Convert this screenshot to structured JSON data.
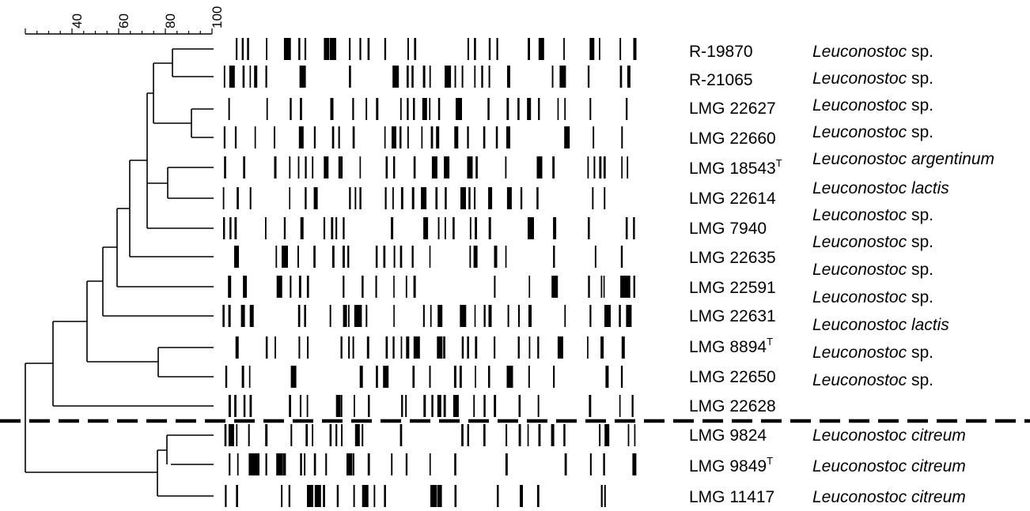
{
  "scale_bar": {
    "tick_labels": [
      "40",
      "60",
      "80",
      "100"
    ]
  },
  "samples": [
    {
      "strain": "R-19870",
      "type_strain": false,
      "genus": "Leuconostoc",
      "epithet": "sp."
    },
    {
      "strain": "R-21065",
      "type_strain": false,
      "genus": "Leuconostoc",
      "epithet": "sp."
    },
    {
      "strain": "LMG 22627",
      "type_strain": false,
      "genus": "Leuconostoc",
      "epithet": "sp."
    },
    {
      "strain": "LMG 22660",
      "type_strain": false,
      "genus": "Leuconostoc",
      "epithet": "sp."
    },
    {
      "strain": "LMG 18543",
      "type_strain": true,
      "genus": "Leuconostoc",
      "epithet": "argentinum"
    },
    {
      "strain": "LMG 22614",
      "type_strain": false,
      "genus": "Leuconostoc",
      "epithet": "lactis"
    },
    {
      "strain": "LMG 7940",
      "type_strain": false,
      "genus": "Leuconostoc",
      "epithet": "sp."
    },
    {
      "strain": "LMG 22635",
      "type_strain": false,
      "genus": "Leuconostoc",
      "epithet": "sp."
    },
    {
      "strain": "LMG 22591",
      "type_strain": false,
      "genus": "Leuconostoc",
      "epithet": "sp."
    },
    {
      "strain": "LMG 22631",
      "type_strain": false,
      "genus": "Leuconostoc",
      "epithet": "sp."
    },
    {
      "strain": "LMG 8894",
      "type_strain": true,
      "genus": "Leuconostoc",
      "epithet": "lactis"
    },
    {
      "strain": "LMG 22650",
      "type_strain": false,
      "genus": "Leuconostoc",
      "epithet": "sp."
    },
    {
      "strain": "LMG 22628",
      "type_strain": false,
      "genus": "Leuconostoc",
      "epithet": "sp."
    },
    {
      "strain": "LMG 9824",
      "type_strain": false,
      "genus": "Leuconostoc",
      "epithet": "citreum"
    },
    {
      "strain": "LMG 9849",
      "type_strain": true,
      "genus": "Leuconostoc",
      "epithet": "citreum"
    },
    {
      "strain": "LMG 11417",
      "type_strain": false,
      "genus": "Leuconostoc",
      "epithet": "citreum"
    }
  ],
  "type_strain_marker": "T"
}
